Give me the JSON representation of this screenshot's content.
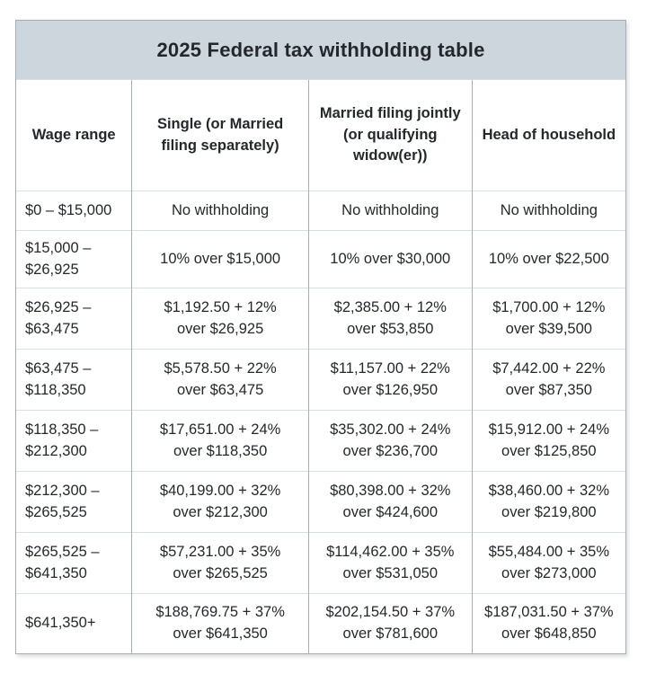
{
  "chart_data": {
    "type": "table",
    "title": "2025 Federal tax withholding table",
    "columns": [
      "Wage range",
      "Single (or Married\nfiling separately)",
      "Married filing jointly\n(or qualifying\nwidow(er))",
      "Head of household"
    ],
    "rows": [
      [
        "$0 – $15,000",
        "No withholding",
        "No withholding",
        "No withholding"
      ],
      [
        "$15,000 –\n$26,925",
        "10% over $15,000",
        "10% over $30,000",
        "10% over $22,500"
      ],
      [
        "$26,925 –\n$63,475",
        "$1,192.50 + 12%\nover $26,925",
        "$2,385.00 + 12%\nover $53,850",
        "$1,700.00 + 12%\nover $39,500"
      ],
      [
        "$63,475 –\n$118,350",
        "$5,578.50 + 22%\nover $63,475",
        "$11,157.00 + 22%\nover $126,950",
        "$7,442.00 + 22%\nover $87,350"
      ],
      [
        "$118,350 –\n$212,300",
        "$17,651.00 + 24%\nover $118,350",
        "$35,302.00 + 24%\nover $236,700",
        "$15,912.00 + 24%\nover $125,850"
      ],
      [
        "$212,300 –\n$265,525",
        "$40,199.00 + 32%\nover $212,300",
        "$80,398.00 + 32%\nover $424,600",
        "$38,460.00 + 32%\nover $219,800"
      ],
      [
        "$265,525 –\n$641,350",
        "$57,231.00 + 35%\nover $265,525",
        "$114,462.00 + 35%\nover $531,050",
        "$55,484.00 + 35%\nover $273,000"
      ],
      [
        "$641,350+",
        "$188,769.75 + 37%\nover $641,350",
        "$202,154.50 + 37%\nover $781,600",
        "$187,031.50 + 37%\nover $648,850"
      ]
    ]
  },
  "colors": {
    "background": "#ffffff",
    "title_band": "#cdd6dd",
    "border_dark": "#a6adb3",
    "border_light": "#d9dee2",
    "text": "#24282c"
  }
}
